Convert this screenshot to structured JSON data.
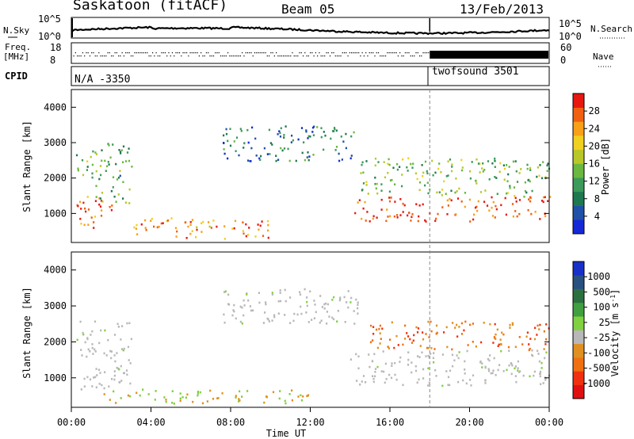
{
  "header": {
    "station": "Saskatoon (fitACF)",
    "beam": "Beam 05",
    "date": "13/Feb/2013"
  },
  "top_panels": {
    "nsky_label": "N.Sky",
    "nsky_ticks": [
      "10^5",
      "10^0"
    ],
    "nsearch_label": "N.Search",
    "nsearch_ticks": [
      "10^5",
      "10^0"
    ],
    "freq_label_1": "Freq.",
    "freq_label_2": "[MHz]",
    "freq_ticks": [
      "18",
      "8"
    ],
    "nave_label": "Nave",
    "nave_ticks": [
      "60",
      "0"
    ],
    "cpid_label": "CPID",
    "cpid_segments": [
      {
        "text": "N/A -3350",
        "start_hour": 0
      },
      {
        "text": "twofsound 3501",
        "start_hour": 18
      }
    ]
  },
  "chart_data": [
    {
      "type": "heatmap",
      "title": "",
      "xlabel": "Time UT",
      "ylabel": "Slant Range [km]",
      "xlim": [
        0,
        24
      ],
      "ylim": [
        180,
        4500
      ],
      "x_ticks": [
        "00:00",
        "04:00",
        "08:00",
        "12:00",
        "16:00",
        "20:00",
        "00:00"
      ],
      "y_ticks": [
        1000,
        2000,
        3000,
        4000
      ],
      "colorbar": {
        "label": "Power [dB]",
        "ticks": [
          4,
          8,
          12,
          16,
          20,
          24,
          28
        ],
        "colors": [
          "#1428d8",
          "#2050a8",
          "#1e7850",
          "#3c9a5a",
          "#6ab840",
          "#b8c828",
          "#f0d020",
          "#f8a018",
          "#f06010",
          "#e81810"
        ]
      },
      "features_hours_km": [
        {
          "name": "morning band",
          "t0": 0.2,
          "t1": 2.2,
          "r0": 600,
          "r1": 1500,
          "level_db": 24
        },
        {
          "name": "morning upper patch",
          "t0": 0.2,
          "t1": 1.5,
          "r0": 2000,
          "r1": 2800,
          "level_db": 12
        },
        {
          "name": "ascending arc",
          "t0": 1.2,
          "t1": 3.0,
          "r0": 1300,
          "r1": 3000,
          "level_db": 10
        },
        {
          "name": "midday arc",
          "t0": 7.6,
          "t1": 14.4,
          "r0": 2500,
          "r1": 3500,
          "level_db": 6
        },
        {
          "name": "near range band",
          "t0": 3.0,
          "t1": 10.0,
          "r0": 300,
          "r1": 900,
          "level_db": 22
        },
        {
          "name": "evening band",
          "t0": 14.2,
          "t1": 24.0,
          "r0": 800,
          "r1": 1500,
          "level_db": 26
        },
        {
          "name": "evening upper",
          "t0": 14.5,
          "t1": 24.0,
          "r0": 1500,
          "r1": 2600,
          "level_db": 12
        }
      ]
    },
    {
      "type": "heatmap",
      "title": "",
      "xlabel": "Time UT",
      "ylabel": "Slant Range [km]",
      "xlim": [
        0,
        24
      ],
      "ylim": [
        180,
        4500
      ],
      "x_ticks": [
        "00:00",
        "04:00",
        "08:00",
        "12:00",
        "16:00",
        "20:00",
        "00:00"
      ],
      "y_ticks": [
        1000,
        2000,
        3000,
        4000
      ],
      "colorbar": {
        "label": "Velocity [m s^-1]",
        "ticks": [
          "1000",
          "500",
          "100",
          "25",
          "-25",
          "-100",
          "-500",
          "-1000"
        ],
        "colors": [
          "#1830c8",
          "#285080",
          "#2c7040",
          "#40a040",
          "#80d040",
          "#b8b8b8",
          "#e09020",
          "#f07010",
          "#f03010",
          "#e01010"
        ]
      },
      "features_hours_km": [
        {
          "name": "morning ground scatter",
          "t0": 0.2,
          "t1": 3.0,
          "r0": 700,
          "r1": 2600,
          "level": "ground"
        },
        {
          "name": "midday arc",
          "t0": 7.6,
          "t1": 14.4,
          "r0": 2500,
          "r1": 3500,
          "level": "ground"
        },
        {
          "name": "evening ground band",
          "t0": 14.0,
          "t1": 24.0,
          "r0": 800,
          "r1": 1800,
          "level": "ground"
        },
        {
          "name": "evening ionospheric",
          "t0": 15.0,
          "t1": 24.0,
          "r0": 1800,
          "r1": 2600,
          "level": "-300"
        },
        {
          "name": "near range green",
          "t0": 1.5,
          "t1": 12.0,
          "r0": 300,
          "r1": 700,
          "level": "-50"
        }
      ]
    }
  ]
}
